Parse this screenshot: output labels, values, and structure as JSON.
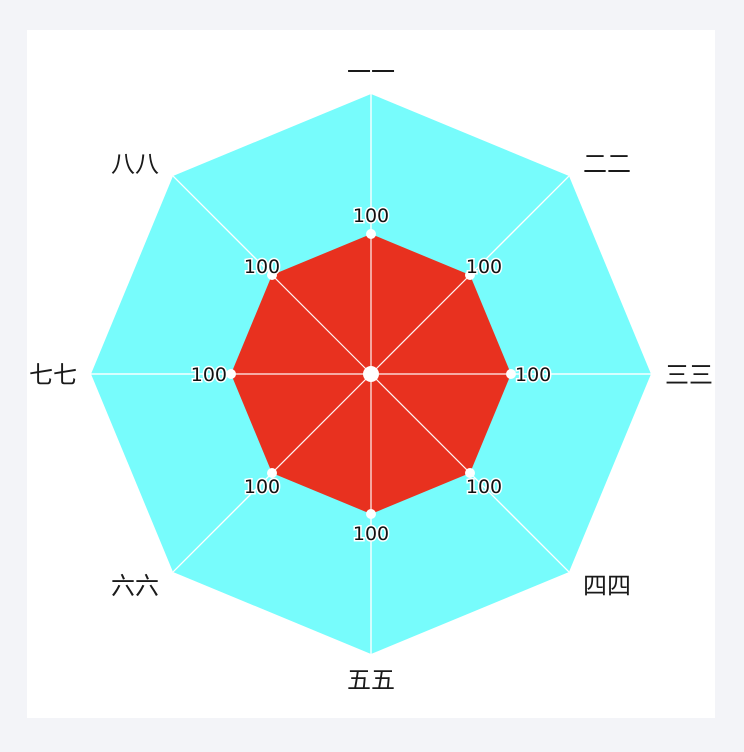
{
  "chart_data": {
    "type": "radar",
    "axes": [
      "一一",
      "二二",
      "三三",
      "四四",
      "五五",
      "六六",
      "七七",
      "八八"
    ],
    "max": 200,
    "series": [
      {
        "values": [
          100,
          100,
          100,
          100,
          100,
          100,
          100,
          100
        ],
        "color": "#e8311f"
      }
    ],
    "background_color": "#77fcfc",
    "spoke_color": "#ffffff",
    "show_value_labels": true
  }
}
